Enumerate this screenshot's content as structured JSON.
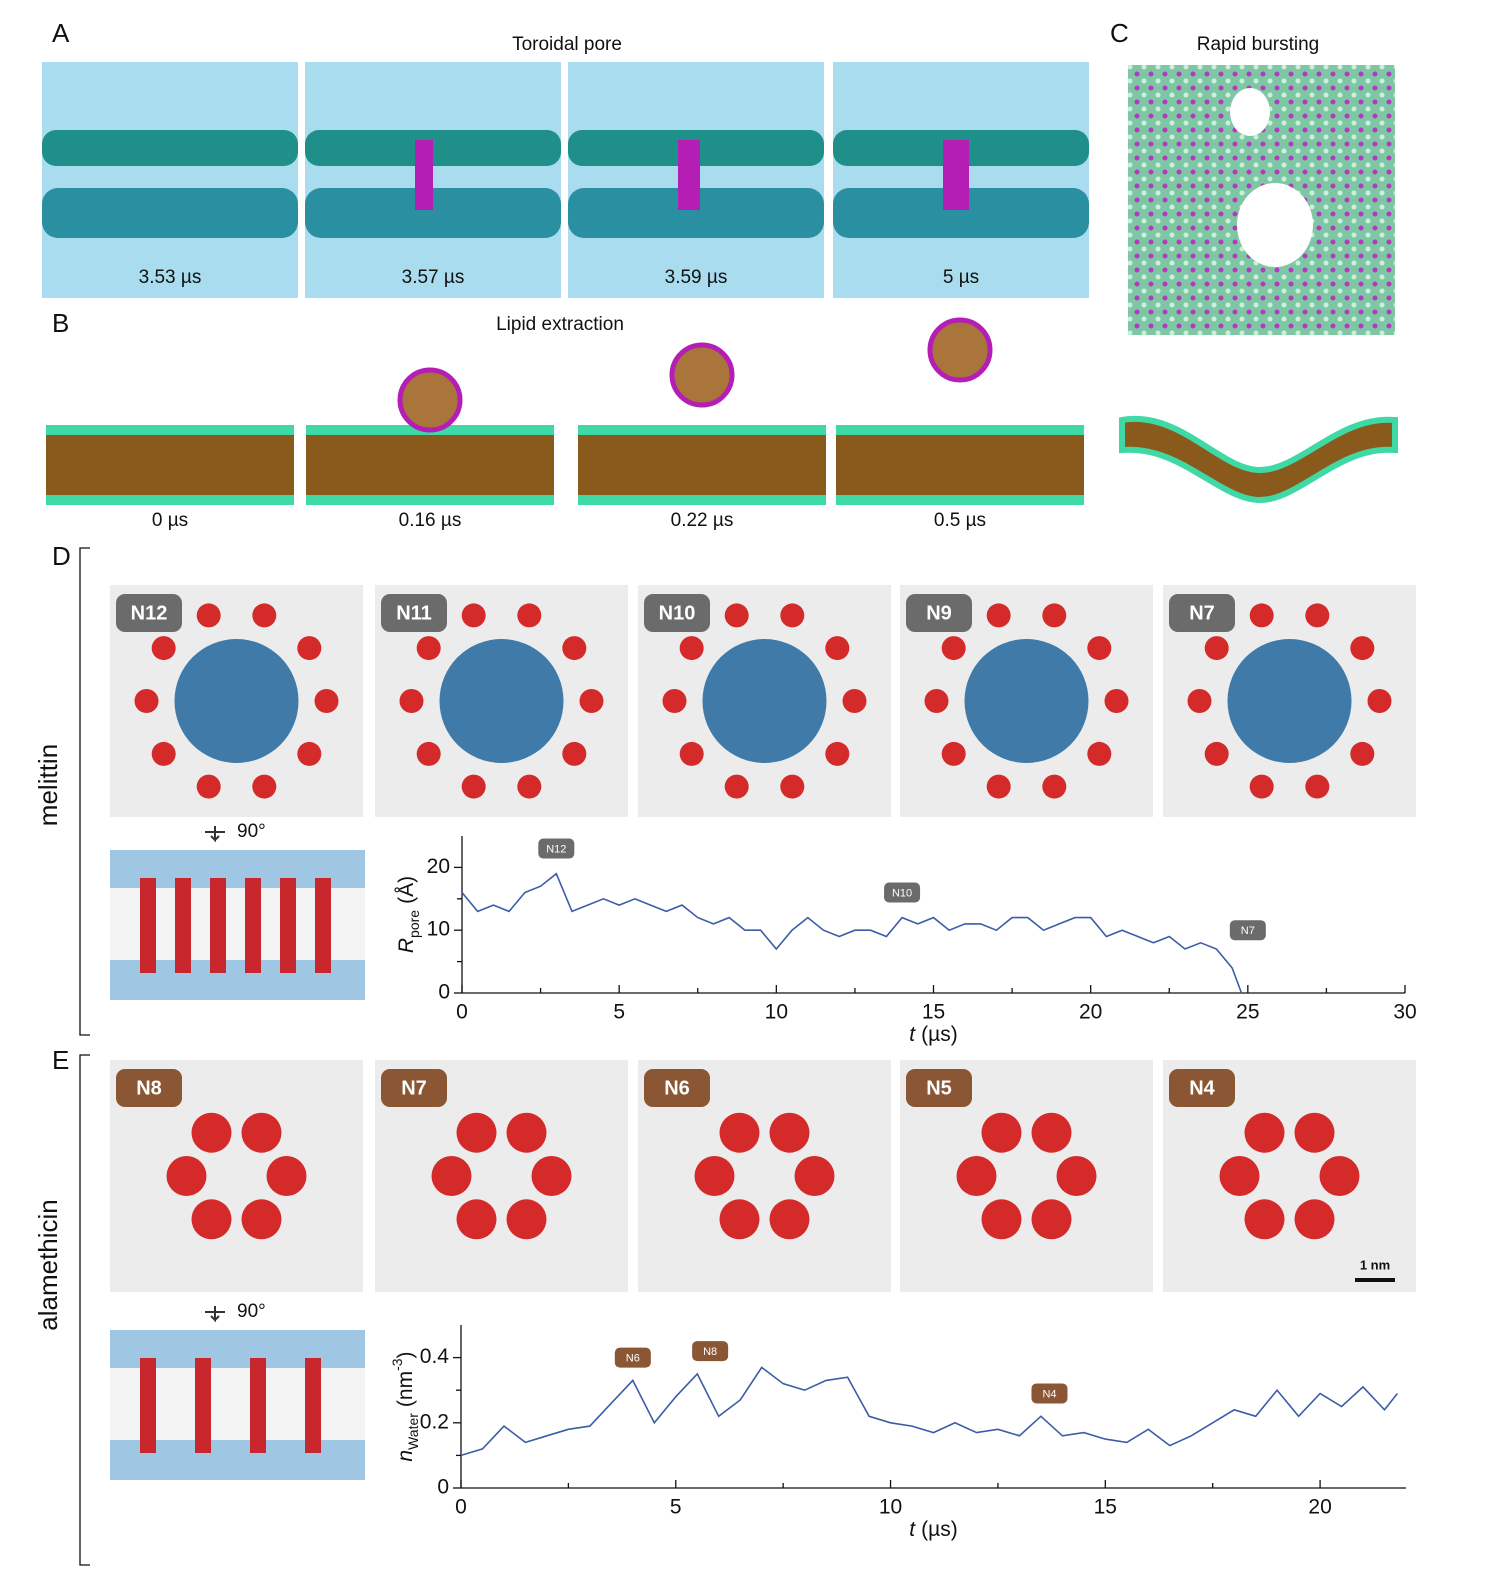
{
  "panels": {
    "A": {
      "letter": "A",
      "title": "Toroidal pore",
      "times": [
        "3.53 µs",
        "3.57 µs",
        "3.59 µs",
        "5 µs"
      ]
    },
    "B": {
      "letter": "B",
      "title": "Lipid extraction",
      "times": [
        "0 µs",
        "0.16 µs",
        "0.22 µs",
        "0.5 µs"
      ]
    },
    "C": {
      "letter": "C",
      "title": "Rapid bursting"
    },
    "D": {
      "letter": "D",
      "peptide": "melittin",
      "snapshots": [
        "N12",
        "N11",
        "N10",
        "N9",
        "N7"
      ],
      "rotation": "90°"
    },
    "E": {
      "letter": "E",
      "peptide": "alamethicin",
      "snapshots": [
        "N8",
        "N7",
        "N6",
        "N5",
        "N4"
      ],
      "rotation": "90°",
      "scale_bar": "1 nm"
    }
  },
  "chart_data": [
    {
      "type": "line",
      "color": "#3d5ca8",
      "x": [
        0,
        0.5,
        1,
        1.5,
        2,
        2.5,
        3,
        3.5,
        4,
        4.5,
        5,
        5.5,
        6,
        6.5,
        7,
        7.5,
        8,
        8.5,
        9,
        9.5,
        10,
        10.5,
        11,
        11.5,
        12,
        12.5,
        13,
        13.5,
        14,
        14.5,
        15,
        15.5,
        16,
        16.5,
        17,
        17.5,
        18,
        18.5,
        19,
        19.5,
        20,
        20.5,
        21,
        21.5,
        22,
        22.5,
        23,
        23.5,
        24,
        24.5,
        24.8
      ],
      "values": [
        16,
        13,
        14,
        13,
        16,
        17,
        19,
        13,
        14,
        15,
        14,
        15,
        14,
        13,
        14,
        12,
        11,
        12,
        10,
        10,
        7,
        10,
        12,
        10,
        9,
        10,
        10,
        9,
        12,
        11,
        12,
        10,
        11,
        11,
        10,
        12,
        12,
        10,
        11,
        12,
        12,
        9,
        10,
        9,
        8,
        9,
        7,
        8,
        7,
        4,
        0
      ],
      "xlim": [
        0,
        30
      ],
      "ylim": [
        0,
        25
      ],
      "xticks": [
        0,
        5,
        10,
        15,
        20,
        25,
        30
      ],
      "yticks": [
        0,
        10,
        20
      ],
      "x_minor_ticks": [
        2.5,
        7.5,
        12.5,
        17.5,
        22.5,
        27.5
      ],
      "y_minor_ticks": [
        5,
        15
      ],
      "xlabel": {
        "symbol": "t",
        "unit": "(µs)"
      },
      "ylabel": {
        "symbol": "R",
        "subscript": "pore",
        "unit": "(Å)"
      },
      "annotation_color": "#6b6b6b",
      "annotations": [
        {
          "text": "N12",
          "x": 3,
          "y": 23
        },
        {
          "text": "N10",
          "x": 14,
          "y": 16
        },
        {
          "text": "N7",
          "x": 25,
          "y": 10
        }
      ]
    },
    {
      "type": "line",
      "color": "#3d5ca8",
      "x": [
        0,
        0.5,
        1,
        1.5,
        2,
        2.5,
        3,
        3.5,
        4,
        4.5,
        5,
        5.5,
        6,
        6.5,
        7,
        7.5,
        8,
        8.5,
        9,
        9.5,
        10,
        10.5,
        11,
        11.5,
        12,
        12.5,
        13,
        13.5,
        14,
        14.5,
        15,
        15.5,
        16,
        16.5,
        17,
        17.5,
        18,
        18.5,
        19,
        19.5,
        20,
        20.5,
        21,
        21.5,
        21.8
      ],
      "values": [
        0.1,
        0.12,
        0.19,
        0.14,
        0.16,
        0.18,
        0.19,
        0.26,
        0.33,
        0.2,
        0.28,
        0.35,
        0.22,
        0.27,
        0.37,
        0.32,
        0.3,
        0.33,
        0.34,
        0.22,
        0.2,
        0.19,
        0.17,
        0.2,
        0.17,
        0.18,
        0.16,
        0.22,
        0.16,
        0.17,
        0.15,
        0.14,
        0.18,
        0.13,
        0.16,
        0.2,
        0.24,
        0.22,
        0.3,
        0.22,
        0.29,
        0.25,
        0.31,
        0.24,
        0.29
      ],
      "xlim": [
        0,
        22
      ],
      "ylim": [
        0,
        0.5
      ],
      "xticks": [
        0,
        5,
        10,
        15,
        20
      ],
      "yticks": [
        0,
        0.2,
        0.4
      ],
      "x_minor_ticks": [
        2.5,
        7.5,
        12.5,
        17.5
      ],
      "y_minor_ticks": [
        0.1,
        0.3
      ],
      "xlabel": {
        "symbol": "t",
        "unit": "(µs)"
      },
      "ylabel": {
        "symbol": "n",
        "subscript": "Water",
        "unit": "(nm",
        "unit_superscript": "-3",
        "unit_end": ")"
      },
      "annotation_color": "#8a5634",
      "annotations": [
        {
          "text": "N6",
          "x": 4,
          "y": 0.4
        },
        {
          "text": "N8",
          "x": 5.8,
          "y": 0.42
        },
        {
          "text": "N4",
          "x": 13.7,
          "y": 0.29
        }
      ]
    }
  ]
}
